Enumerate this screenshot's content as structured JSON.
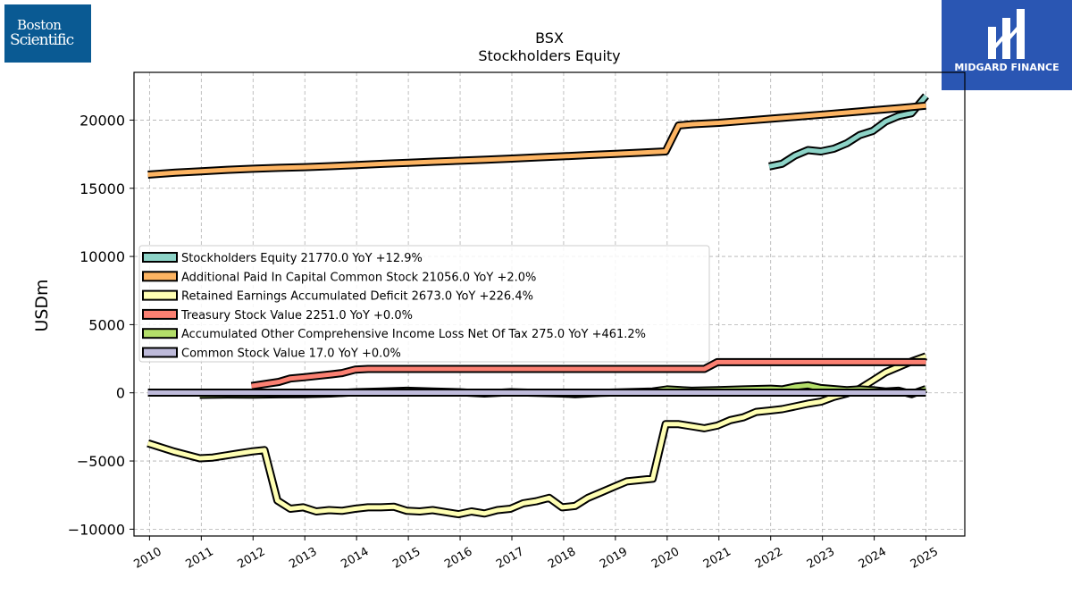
{
  "logos": {
    "left_line1": "Boston",
    "left_line2": "Scientific",
    "right_name": "MIDGARD FINANCE"
  },
  "colors": {
    "axis": "#000000",
    "grid": "#b0b0b0",
    "legend_border": "#cccccc"
  },
  "chart_data": {
    "type": "line",
    "title": "BSX",
    "subtitle": "Stockholders  Equity",
    "ylabel": "USDm",
    "xlabel": "",
    "xlim": [
      2009.7,
      2025.75
    ],
    "ylim": [
      -10500,
      23500
    ],
    "x_ticks": [
      "2010",
      "2011",
      "2012",
      "2013",
      "2014",
      "2015",
      "2016",
      "2017",
      "2018",
      "2019",
      "2020",
      "2021",
      "2022",
      "2023",
      "2024",
      "2025"
    ],
    "y_ticks": [
      -10000,
      -5000,
      0,
      5000,
      10000,
      15000,
      20000
    ],
    "y_tick_labels": [
      "−10000",
      "−5000",
      "0",
      "5000",
      "10000",
      "15000",
      "20000"
    ],
    "grid": true,
    "legend_position": "center-left",
    "series": [
      {
        "name": "Stockholders Equity",
        "legend": "Stockholders Equity  21770.0 YoY +12.9%",
        "color": "#8dd3c7",
        "points": [
          [
            2021.97,
            16600
          ],
          [
            2022.22,
            16800
          ],
          [
            2022.47,
            17400
          ],
          [
            2022.72,
            17800
          ],
          [
            2022.97,
            17700
          ],
          [
            2023.22,
            17900
          ],
          [
            2023.47,
            18300
          ],
          [
            2023.72,
            18900
          ],
          [
            2023.97,
            19200
          ],
          [
            2024.22,
            19900
          ],
          [
            2024.47,
            20300
          ],
          [
            2024.72,
            20500
          ],
          [
            2025.0,
            21770
          ]
        ]
      },
      {
        "name": "Additional Paid In Capital Common Stock",
        "legend": "Additional Paid In Capital Common Stock  21056.0 YoY +2.0%",
        "color": "#fdb462",
        "points": [
          [
            2009.97,
            16000
          ],
          [
            2010.5,
            16150
          ],
          [
            2011.0,
            16250
          ],
          [
            2011.5,
            16350
          ],
          [
            2012.0,
            16430
          ],
          [
            2012.5,
            16500
          ],
          [
            2013.0,
            16550
          ],
          [
            2013.5,
            16620
          ],
          [
            2014.0,
            16700
          ],
          [
            2014.5,
            16790
          ],
          [
            2015.0,
            16870
          ],
          [
            2015.5,
            16950
          ],
          [
            2016.0,
            17020
          ],
          [
            2016.5,
            17100
          ],
          [
            2017.0,
            17180
          ],
          [
            2017.5,
            17270
          ],
          [
            2018.0,
            17350
          ],
          [
            2018.5,
            17440
          ],
          [
            2019.0,
            17520
          ],
          [
            2019.5,
            17610
          ],
          [
            2019.97,
            17700
          ],
          [
            2020.22,
            19600
          ],
          [
            2020.5,
            19700
          ],
          [
            2021.0,
            19800
          ],
          [
            2021.5,
            19950
          ],
          [
            2022.0,
            20100
          ],
          [
            2022.5,
            20250
          ],
          [
            2023.0,
            20400
          ],
          [
            2023.5,
            20560
          ],
          [
            2024.0,
            20720
          ],
          [
            2024.5,
            20880
          ],
          [
            2025.0,
            21056
          ]
        ]
      },
      {
        "name": "Retained Earnings Accumulated Deficit",
        "legend": "Retained Earnings Accumulated Deficit  2673.0 YoY +226.4%",
        "color": "#ffffb3",
        "points": [
          [
            2009.97,
            -3700
          ],
          [
            2010.47,
            -4300
          ],
          [
            2010.97,
            -4800
          ],
          [
            2011.22,
            -4750
          ],
          [
            2011.47,
            -4600
          ],
          [
            2011.72,
            -4450
          ],
          [
            2011.97,
            -4300
          ],
          [
            2012.22,
            -4200
          ],
          [
            2012.47,
            -7900
          ],
          [
            2012.72,
            -8500
          ],
          [
            2012.97,
            -8400
          ],
          [
            2013.22,
            -8700
          ],
          [
            2013.47,
            -8600
          ],
          [
            2013.72,
            -8650
          ],
          [
            2013.97,
            -8500
          ],
          [
            2014.22,
            -8400
          ],
          [
            2014.47,
            -8400
          ],
          [
            2014.72,
            -8350
          ],
          [
            2014.97,
            -8650
          ],
          [
            2015.22,
            -8700
          ],
          [
            2015.47,
            -8600
          ],
          [
            2015.72,
            -8750
          ],
          [
            2015.97,
            -8900
          ],
          [
            2016.22,
            -8700
          ],
          [
            2016.47,
            -8850
          ],
          [
            2016.72,
            -8600
          ],
          [
            2016.97,
            -8500
          ],
          [
            2017.22,
            -8100
          ],
          [
            2017.47,
            -7950
          ],
          [
            2017.72,
            -7700
          ],
          [
            2017.97,
            -8400
          ],
          [
            2018.22,
            -8300
          ],
          [
            2018.47,
            -7700
          ],
          [
            2018.72,
            -7300
          ],
          [
            2018.97,
            -6900
          ],
          [
            2019.22,
            -6500
          ],
          [
            2019.47,
            -6400
          ],
          [
            2019.72,
            -6300
          ],
          [
            2019.97,
            -2300
          ],
          [
            2020.22,
            -2300
          ],
          [
            2020.47,
            -2450
          ],
          [
            2020.72,
            -2600
          ],
          [
            2020.97,
            -2400
          ],
          [
            2021.22,
            -2000
          ],
          [
            2021.47,
            -1800
          ],
          [
            2021.72,
            -1400
          ],
          [
            2021.97,
            -1300
          ],
          [
            2022.22,
            -1200
          ],
          [
            2022.47,
            -1000
          ],
          [
            2022.72,
            -800
          ],
          [
            2022.97,
            -650
          ],
          [
            2023.22,
            -300
          ],
          [
            2023.47,
            -50
          ],
          [
            2023.72,
            300
          ],
          [
            2023.97,
            900
          ],
          [
            2024.22,
            1500
          ],
          [
            2024.47,
            1900
          ],
          [
            2024.72,
            2300
          ],
          [
            2025.0,
            2673
          ]
        ]
      },
      {
        "name": "Treasury Stock Value",
        "legend": "Treasury Stock Value  2251.0 YoY +0.0%",
        "color": "#fb8072",
        "points": [
          [
            2011.97,
            500
          ],
          [
            2012.5,
            800
          ],
          [
            2012.72,
            1050
          ],
          [
            2013.0,
            1150
          ],
          [
            2013.5,
            1350
          ],
          [
            2013.72,
            1450
          ],
          [
            2013.97,
            1700
          ],
          [
            2014.22,
            1750
          ],
          [
            2014.5,
            1750
          ],
          [
            2015.0,
            1750
          ],
          [
            2016.0,
            1750
          ],
          [
            2017.0,
            1750
          ],
          [
            2018.0,
            1750
          ],
          [
            2019.0,
            1750
          ],
          [
            2020.0,
            1750
          ],
          [
            2020.72,
            1750
          ],
          [
            2020.97,
            2251
          ],
          [
            2021.5,
            2251
          ],
          [
            2022.0,
            2251
          ],
          [
            2023.0,
            2251
          ],
          [
            2024.0,
            2251
          ],
          [
            2025.0,
            2251
          ]
        ]
      },
      {
        "name": "Accumulated Other Comprehensive Income Loss Net Of Tax",
        "legend": "Accumulated Other Comprehensive Income Loss Net Of Tax  275.0 YoY +461.2%",
        "color": "#b3de69",
        "points": [
          [
            2010.97,
            -150
          ],
          [
            2011.5,
            -120
          ],
          [
            2012.0,
            -130
          ],
          [
            2012.5,
            -110
          ],
          [
            2012.97,
            -100
          ],
          [
            2013.5,
            -50
          ],
          [
            2014.0,
            50
          ],
          [
            2014.5,
            100
          ],
          [
            2014.97,
            150
          ],
          [
            2015.47,
            100
          ],
          [
            2015.97,
            50
          ],
          [
            2016.47,
            -50
          ],
          [
            2016.97,
            50
          ],
          [
            2017.47,
            0
          ],
          [
            2017.97,
            -50
          ],
          [
            2018.22,
            -100
          ],
          [
            2018.72,
            0
          ],
          [
            2019.22,
            50
          ],
          [
            2019.72,
            100
          ],
          [
            2020.0,
            250
          ],
          [
            2020.47,
            150
          ],
          [
            2020.97,
            200
          ],
          [
            2021.47,
            250
          ],
          [
            2022.0,
            300
          ],
          [
            2022.22,
            250
          ],
          [
            2022.47,
            450
          ],
          [
            2022.72,
            550
          ],
          [
            2022.97,
            350
          ],
          [
            2023.47,
            200
          ],
          [
            2023.72,
            250
          ],
          [
            2023.97,
            200
          ],
          [
            2024.22,
            100
          ],
          [
            2024.47,
            150
          ],
          [
            2024.72,
            -100
          ],
          [
            2025.0,
            275
          ]
        ]
      },
      {
        "name": "Common Stock Value",
        "legend": "Common Stock Value  17.0 YoY +0.0%",
        "color": "#bebada",
        "points": [
          [
            2009.97,
            17
          ],
          [
            2015.0,
            17
          ],
          [
            2020.0,
            17
          ],
          [
            2025.0,
            17
          ]
        ]
      }
    ]
  }
}
